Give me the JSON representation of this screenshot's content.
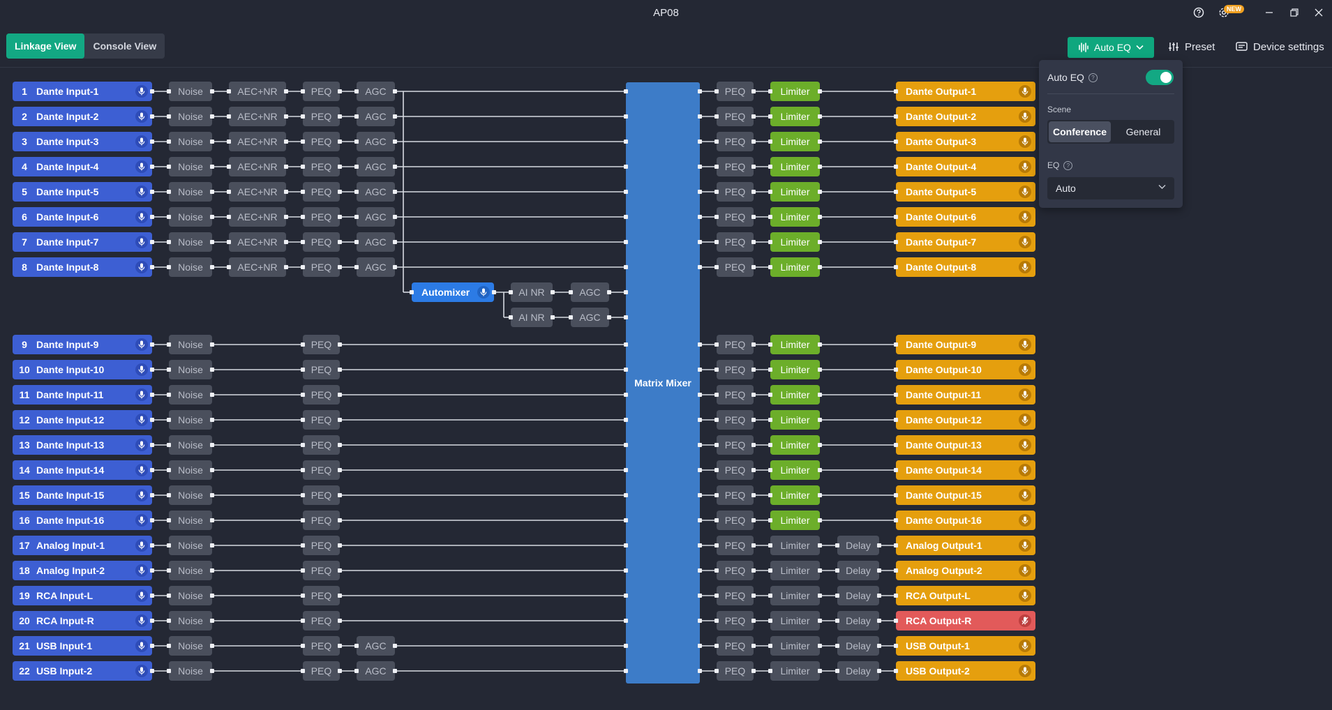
{
  "window": {
    "title": "AP08",
    "new_badge": "NEW"
  },
  "toolbar": {
    "views": [
      "Linkage View",
      "Console View"
    ],
    "active_view": 0,
    "auto_eq_label": "Auto EQ",
    "preset_label": "Preset",
    "device_settings_label": "Device settings"
  },
  "auto_eq_panel": {
    "title": "Auto EQ",
    "enabled": true,
    "scene_label": "Scene",
    "scenes": [
      "Conference",
      "General"
    ],
    "selected_scene": "Conference",
    "eq_label": "EQ",
    "eq_value": "Auto"
  },
  "matrix_label": "Matrix Mixer",
  "block_labels": {
    "noise": "Noise",
    "aec": "AEC+NR",
    "peq": "PEQ",
    "agc": "AGC",
    "limiter": "Limiter",
    "delay": "Delay",
    "ainr": "AI NR",
    "automixer": "Automixer"
  },
  "inputs": [
    {
      "num": "1",
      "name": "Dante Input-1"
    },
    {
      "num": "2",
      "name": "Dante Input-2"
    },
    {
      "num": "3",
      "name": "Dante Input-3"
    },
    {
      "num": "4",
      "name": "Dante Input-4"
    },
    {
      "num": "5",
      "name": "Dante Input-5"
    },
    {
      "num": "6",
      "name": "Dante Input-6"
    },
    {
      "num": "7",
      "name": "Dante Input-7"
    },
    {
      "num": "8",
      "name": "Dante Input-8"
    },
    {
      "num": "9",
      "name": "Dante Input-9"
    },
    {
      "num": "10",
      "name": "Dante Input-10"
    },
    {
      "num": "11",
      "name": "Dante Input-11"
    },
    {
      "num": "12",
      "name": "Dante Input-12"
    },
    {
      "num": "13",
      "name": "Dante Input-13"
    },
    {
      "num": "14",
      "name": "Dante Input-14"
    },
    {
      "num": "15",
      "name": "Dante Input-15"
    },
    {
      "num": "16",
      "name": "Dante Input-16"
    },
    {
      "num": "17",
      "name": "Analog Input-1"
    },
    {
      "num": "18",
      "name": "Analog Input-2"
    },
    {
      "num": "19",
      "name": "RCA Input-L"
    },
    {
      "num": "20",
      "name": "RCA Input-R"
    },
    {
      "num": "21",
      "name": "USB Input-1"
    },
    {
      "num": "22",
      "name": "USB Input-2"
    }
  ],
  "outputs": [
    {
      "name": "Dante Output-1",
      "muted": false
    },
    {
      "name": "Dante Output-2",
      "muted": false
    },
    {
      "name": "Dante Output-3",
      "muted": false
    },
    {
      "name": "Dante Output-4",
      "muted": false
    },
    {
      "name": "Dante Output-5",
      "muted": false
    },
    {
      "name": "Dante Output-6",
      "muted": false
    },
    {
      "name": "Dante Output-7",
      "muted": false
    },
    {
      "name": "Dante Output-8",
      "muted": false
    },
    {
      "name": "Dante Output-9",
      "muted": false
    },
    {
      "name": "Dante Output-10",
      "muted": false
    },
    {
      "name": "Dante Output-11",
      "muted": false
    },
    {
      "name": "Dante Output-12",
      "muted": false
    },
    {
      "name": "Dante Output-13",
      "muted": false
    },
    {
      "name": "Dante Output-14",
      "muted": false
    },
    {
      "name": "Dante Output-15",
      "muted": false
    },
    {
      "name": "Dante Output-16",
      "muted": false
    },
    {
      "name": "Analog Output-1",
      "muted": false
    },
    {
      "name": "Analog Output-2",
      "muted": false
    },
    {
      "name": "RCA Output-L",
      "muted": false
    },
    {
      "name": "RCA Output-R",
      "muted": true
    },
    {
      "name": "USB Output-1",
      "muted": false
    },
    {
      "name": "USB Output-2",
      "muted": false
    }
  ],
  "colors": {
    "accent": "#13a883",
    "input": "#3d5fd3",
    "output": "#e59f0e",
    "muted_output": "#e25a5a",
    "limiter_on": "#6cae2a",
    "matrix": "#3d7cc8"
  },
  "icons": {
    "help": "help-circle-icon",
    "settings": "gear-icon",
    "mic": "mic-icon",
    "mic_muted": "mic-off-icon"
  }
}
